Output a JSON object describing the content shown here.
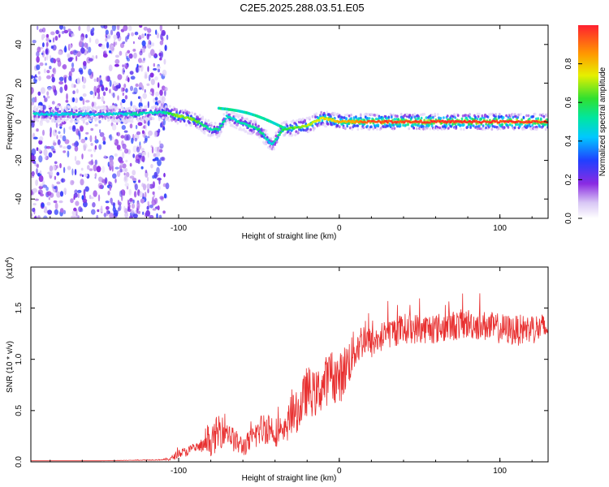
{
  "page": {
    "title": "C2E5.2025.288.03.51.E05"
  },
  "chart_data": [
    {
      "type": "heatmap",
      "title": "C2E5.2025.288.03.51.E05",
      "xlabel": "Height of straight line (km)",
      "ylabel": "Frequency (Hz)",
      "xlim": [
        -192,
        130
      ],
      "ylim": [
        -50,
        50
      ],
      "x_ticks": [
        -100,
        0,
        100
      ],
      "x_tick_labels": [
        "-100",
        "0",
        "100"
      ],
      "y_ticks": [
        -40,
        -20,
        0,
        20,
        40
      ],
      "y_tick_labels": [
        "-40",
        "-20",
        "0",
        "20",
        "40"
      ],
      "colorbar": {
        "label": "Normalized spectral amplitude",
        "range": [
          0,
          1
        ],
        "ticks": [
          0,
          0.2,
          0.4,
          0.6,
          0.8
        ],
        "tick_labels": [
          "0.0",
          "0.2",
          "0.4",
          "0.6",
          "0.8"
        ]
      },
      "noise_region": {
        "x_range": [
          -192,
          -107
        ],
        "freq_range": [
          -50,
          50
        ],
        "amplitude": 0.25
      },
      "ridge": [
        {
          "x": -165,
          "freq": 4,
          "amp": 0.45
        },
        {
          "x": -145,
          "freq": 4,
          "amp": 0.45
        },
        {
          "x": -125,
          "freq": 4,
          "amp": 0.5
        },
        {
          "x": -110,
          "freq": 5,
          "amp": 0.5
        },
        {
          "x": -100,
          "freq": 3,
          "amp": 0.7
        },
        {
          "x": -90,
          "freq": 1,
          "amp": 0.65
        },
        {
          "x": -80,
          "freq": -4,
          "amp": 0.5
        },
        {
          "x": -75,
          "freq": -4,
          "amp": 0.55
        },
        {
          "x": -70,
          "freq": 3,
          "amp": 0.45
        },
        {
          "x": -60,
          "freq": -1,
          "amp": 0.5
        },
        {
          "x": -50,
          "freq": -4,
          "amp": 0.55
        },
        {
          "x": -42,
          "freq": -12,
          "amp": 0.45
        },
        {
          "x": -35,
          "freq": -4,
          "amp": 0.6
        },
        {
          "x": -20,
          "freq": -2,
          "amp": 0.7
        },
        {
          "x": -10,
          "freq": 2,
          "amp": 0.75
        },
        {
          "x": 0,
          "freq": 0,
          "amp": 0.8
        },
        {
          "x": 20,
          "freq": 0,
          "amp": 0.95
        },
        {
          "x": 60,
          "freq": 0,
          "amp": 0.97
        },
        {
          "x": 100,
          "freq": 0,
          "amp": 0.97
        },
        {
          "x": 130,
          "freq": 0,
          "amp": 0.95
        }
      ]
    },
    {
      "type": "line",
      "xlabel": "Height of straight line (km)",
      "ylabel": "SNR (10 * v/v)",
      "y_scale_label_base": "(x10",
      "y_scale_label_exp": "4",
      "y_scale_label_close": ")",
      "xlim": [
        -192,
        130
      ],
      "ylim": [
        0,
        1.9
      ],
      "x_ticks": [
        -100,
        0,
        100
      ],
      "x_tick_labels": [
        "-100",
        "0",
        "100"
      ],
      "y_ticks": [
        0,
        0.5,
        1.0,
        1.5
      ],
      "y_tick_labels": [
        "0.0",
        "0.5",
        "1.0",
        "1.5"
      ],
      "series": [
        {
          "name": "SNR",
          "color": "#e83030",
          "x": [
            -192,
            -150,
            -110,
            -105,
            -100,
            -95,
            -90,
            -85,
            -80,
            -75,
            -72,
            -70,
            -65,
            -60,
            -55,
            -50,
            -45,
            -40,
            -35,
            -30,
            -25,
            -20,
            -15,
            -10,
            -5,
            0,
            5,
            10,
            15,
            20,
            30,
            40,
            60,
            80,
            100,
            110,
            120,
            130
          ],
          "values": [
            0.01,
            0.01,
            0.02,
            0.03,
            0.08,
            0.1,
            0.13,
            0.15,
            0.18,
            0.3,
            0.35,
            0.3,
            0.2,
            0.15,
            0.2,
            0.3,
            0.35,
            0.3,
            0.25,
            0.45,
            0.5,
            0.7,
            0.65,
            0.75,
            0.85,
            0.8,
            0.95,
            1.1,
            1.2,
            1.15,
            1.25,
            1.3,
            1.3,
            1.35,
            1.3,
            1.28,
            1.3,
            1.3
          ],
          "noise": [
            0,
            0,
            0.005,
            0.02,
            0.04,
            0.05,
            0.05,
            0.06,
            0.12,
            0.2,
            0.18,
            0.12,
            0.12,
            0.1,
            0.12,
            0.15,
            0.18,
            0.15,
            0.12,
            0.2,
            0.2,
            0.25,
            0.22,
            0.25,
            0.25,
            0.25,
            0.25,
            0.2,
            0.18,
            0.15,
            0.15,
            0.15,
            0.15,
            0.15,
            0.15,
            0.15,
            0.15,
            0.15
          ]
        }
      ]
    }
  ]
}
